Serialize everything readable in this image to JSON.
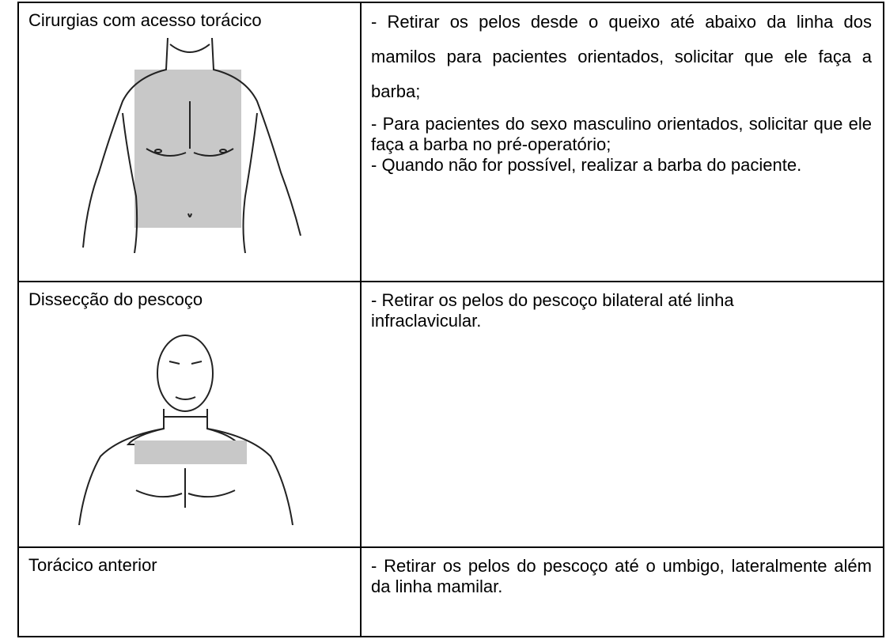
{
  "table": {
    "rows": [
      {
        "procedure": "Cirurgias com acesso torácico",
        "instructions": [
          "- Retirar os pelos desde o queixo até abaixo da linha dos mamilos para pacientes orientados, solicitar que ele faça a barba;",
          "- Para pacientes do sexo masculino orientados, solicitar que ele faça a barba no pré-operatório;",
          "- Quando não for possível, realizar a barba do paciente."
        ]
      },
      {
        "procedure": "Dissecção do pescoço",
        "instructions": [
          "- Retirar os pelos do pescoço bilateral até linha infraclavicular."
        ]
      },
      {
        "procedure": "Torácico anterior",
        "instructions": [
          "- Retirar os pelos do pescoço até o umbigo, lateralmente além da linha mamilar."
        ]
      }
    ]
  }
}
